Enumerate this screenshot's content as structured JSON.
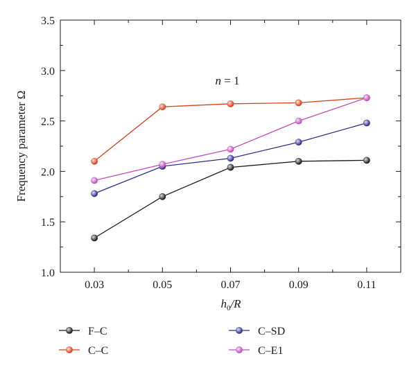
{
  "chart_data": {
    "type": "line",
    "xlabel_main": "h",
    "xlabel_sub": "0",
    "xlabel_rest": "/R",
    "ylabel": "Frequency parameter Ω",
    "annotation_var": "n",
    "annotation_rest": " = 1",
    "x": [
      0.03,
      0.05,
      0.07,
      0.09,
      0.11
    ],
    "x_tick_labels": [
      "0.03",
      "0.05",
      "0.07",
      "0.09",
      "0.11"
    ],
    "xlim": [
      0.02,
      0.12
    ],
    "ylim": [
      1.0,
      3.5
    ],
    "y_ticks": [
      1.0,
      1.5,
      2.0,
      2.5,
      3.0,
      3.5
    ],
    "y_tick_labels": [
      "1.0",
      "1.5",
      "2.0",
      "2.5",
      "3.0",
      "3.5"
    ],
    "grid": false,
    "legend_position": "bottom",
    "series": [
      {
        "name": "F–C",
        "color": "#1a1a1a",
        "values": [
          1.34,
          1.75,
          2.04,
          2.1,
          2.11
        ]
      },
      {
        "name": "C–C",
        "color": "#d6401e",
        "values": [
          2.1,
          2.64,
          2.67,
          2.68,
          2.73
        ]
      },
      {
        "name": "C–SD",
        "color": "#2c2a8e",
        "values": [
          1.78,
          2.05,
          2.13,
          2.29,
          2.48
        ]
      },
      {
        "name": "C–E1",
        "color": "#c14bbd",
        "values": [
          1.91,
          2.07,
          2.22,
          2.5,
          2.73
        ]
      }
    ]
  }
}
